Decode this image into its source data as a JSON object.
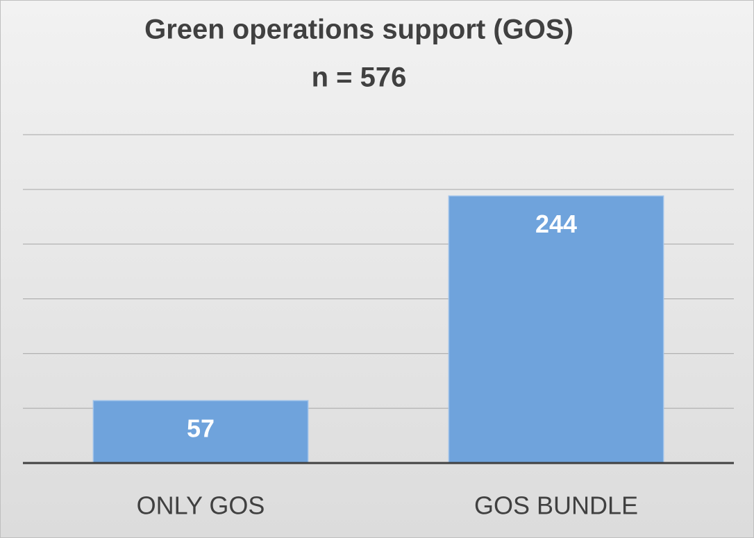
{
  "chart_data": {
    "type": "bar",
    "title": "Green operations support (GOS)",
    "subtitle": "n = 576",
    "categories": [
      "ONLY GOS",
      "GOS BUNDLE"
    ],
    "values": [
      57,
      244
    ],
    "color": "#6fa3dc",
    "ylim": [
      0,
      300
    ],
    "yticks": [
      0,
      50,
      100,
      150,
      200,
      250,
      300
    ],
    "grid": true
  }
}
